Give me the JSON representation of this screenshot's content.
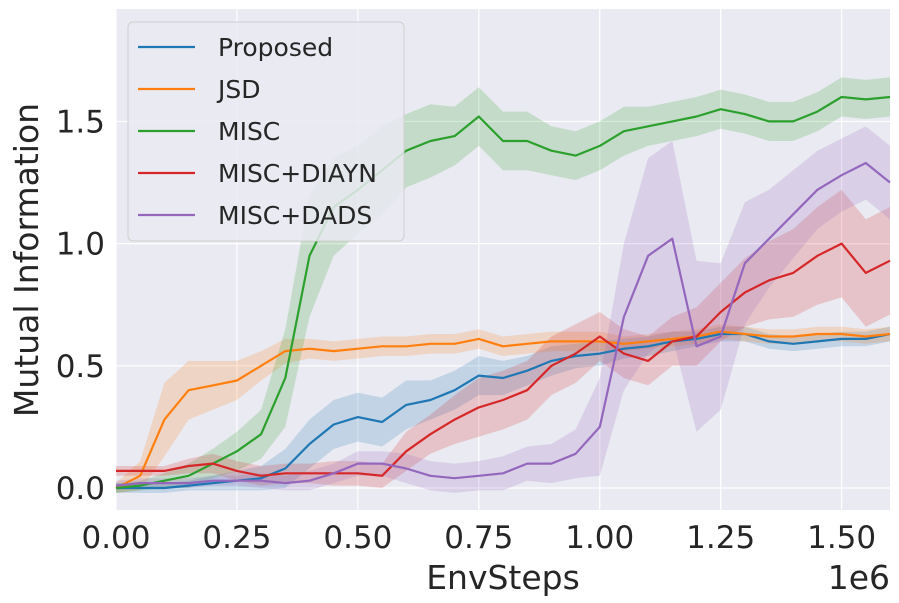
{
  "chart_data": {
    "type": "line",
    "title": "",
    "xlabel": "EnvSteps",
    "ylabel": "Mutual Information",
    "x_offset_label": "1e6",
    "xlim": [
      0,
      1.6
    ],
    "ylim": [
      -0.09,
      1.96
    ],
    "grid": true,
    "legend_position": "top-left",
    "x_ticks": [
      0,
      0.25,
      0.5,
      0.75,
      1.0,
      1.25,
      1.5
    ],
    "x_tick_labels": [
      "0.00",
      "0.25",
      "0.50",
      "0.75",
      "1.00",
      "1.25",
      "1.50"
    ],
    "y_ticks": [
      0,
      0.5,
      1.0,
      1.5
    ],
    "y_tick_labels": [
      "0.0",
      "0.5",
      "1.0",
      "1.5"
    ],
    "x": [
      0.0,
      0.05,
      0.1,
      0.15,
      0.2,
      0.25,
      0.3,
      0.35,
      0.4,
      0.45,
      0.5,
      0.55,
      0.6,
      0.65,
      0.7,
      0.75,
      0.8,
      0.85,
      0.9,
      0.95,
      1.0,
      1.05,
      1.1,
      1.15,
      1.2,
      1.25,
      1.3,
      1.35,
      1.4,
      1.45,
      1.5,
      1.55,
      1.6
    ],
    "series": [
      {
        "name": "Proposed",
        "color": "#1f77b4",
        "values": [
          0.0,
          0.0,
          0.0,
          0.01,
          0.02,
          0.03,
          0.04,
          0.08,
          0.18,
          0.26,
          0.29,
          0.27,
          0.34,
          0.36,
          0.4,
          0.46,
          0.45,
          0.48,
          0.52,
          0.54,
          0.55,
          0.57,
          0.58,
          0.6,
          0.61,
          0.63,
          0.63,
          0.6,
          0.59,
          0.6,
          0.61,
          0.61,
          0.63
        ],
        "band": [
          0.02,
          0.02,
          0.02,
          0.02,
          0.03,
          0.04,
          0.05,
          0.08,
          0.1,
          0.1,
          0.1,
          0.1,
          0.1,
          0.08,
          0.08,
          0.08,
          0.07,
          0.06,
          0.06,
          0.05,
          0.05,
          0.04,
          0.04,
          0.04,
          0.03,
          0.03,
          0.03,
          0.03,
          0.03,
          0.03,
          0.03,
          0.03,
          0.03
        ]
      },
      {
        "name": "JSD",
        "color": "#ff7f0e",
        "values": [
          0.0,
          0.05,
          0.28,
          0.4,
          0.42,
          0.44,
          0.5,
          0.56,
          0.57,
          0.56,
          0.57,
          0.58,
          0.58,
          0.59,
          0.59,
          0.61,
          0.58,
          0.59,
          0.6,
          0.6,
          0.6,
          0.59,
          0.6,
          0.61,
          0.62,
          0.64,
          0.63,
          0.62,
          0.62,
          0.63,
          0.63,
          0.62,
          0.63
        ],
        "band": [
          0.02,
          0.06,
          0.15,
          0.12,
          0.1,
          0.08,
          0.06,
          0.05,
          0.04,
          0.04,
          0.04,
          0.04,
          0.04,
          0.04,
          0.04,
          0.04,
          0.04,
          0.04,
          0.04,
          0.04,
          0.04,
          0.03,
          0.03,
          0.03,
          0.03,
          0.03,
          0.03,
          0.03,
          0.03,
          0.03,
          0.03,
          0.03,
          0.03
        ]
      },
      {
        "name": "MISC",
        "color": "#2ca02c",
        "values": [
          0.0,
          0.01,
          0.03,
          0.05,
          0.1,
          0.15,
          0.22,
          0.45,
          0.95,
          1.15,
          1.22,
          1.3,
          1.38,
          1.42,
          1.44,
          1.52,
          1.42,
          1.42,
          1.38,
          1.36,
          1.4,
          1.46,
          1.48,
          1.5,
          1.52,
          1.55,
          1.53,
          1.5,
          1.5,
          1.54,
          1.6,
          1.59,
          1.6
        ],
        "band": [
          0.02,
          0.02,
          0.03,
          0.05,
          0.06,
          0.08,
          0.1,
          0.2,
          0.25,
          0.2,
          0.18,
          0.18,
          0.15,
          0.15,
          0.12,
          0.12,
          0.12,
          0.12,
          0.1,
          0.1,
          0.1,
          0.1,
          0.08,
          0.08,
          0.08,
          0.08,
          0.08,
          0.08,
          0.08,
          0.08,
          0.08,
          0.08,
          0.08
        ]
      },
      {
        "name": "MISC+DIAYN",
        "color": "#d62728",
        "values": [
          0.07,
          0.07,
          0.07,
          0.09,
          0.1,
          0.07,
          0.05,
          0.06,
          0.06,
          0.06,
          0.06,
          0.05,
          0.15,
          0.22,
          0.28,
          0.33,
          0.36,
          0.4,
          0.5,
          0.55,
          0.62,
          0.55,
          0.52,
          0.6,
          0.62,
          0.72,
          0.8,
          0.85,
          0.88,
          0.95,
          1.0,
          0.88,
          0.93
        ],
        "band": [
          0.02,
          0.02,
          0.02,
          0.03,
          0.04,
          0.04,
          0.04,
          0.04,
          0.04,
          0.05,
          0.05,
          0.05,
          0.08,
          0.08,
          0.1,
          0.12,
          0.12,
          0.12,
          0.12,
          0.12,
          0.1,
          0.1,
          0.1,
          0.1,
          0.12,
          0.12,
          0.14,
          0.16,
          0.18,
          0.2,
          0.22,
          0.22,
          0.22
        ]
      },
      {
        "name": "MISC+DADS",
        "color": "#9467bd",
        "values": [
          0.01,
          0.02,
          0.02,
          0.02,
          0.03,
          0.03,
          0.03,
          0.02,
          0.03,
          0.06,
          0.1,
          0.1,
          0.08,
          0.05,
          0.04,
          0.05,
          0.06,
          0.1,
          0.1,
          0.14,
          0.25,
          0.7,
          0.95,
          1.02,
          0.58,
          0.62,
          0.92,
          1.02,
          1.12,
          1.22,
          1.28,
          1.33,
          1.25
        ],
        "band": [
          0.02,
          0.02,
          0.02,
          0.02,
          0.02,
          0.02,
          0.03,
          0.03,
          0.04,
          0.04,
          0.05,
          0.05,
          0.06,
          0.06,
          0.06,
          0.06,
          0.07,
          0.07,
          0.08,
          0.1,
          0.2,
          0.3,
          0.4,
          0.4,
          0.35,
          0.3,
          0.25,
          0.2,
          0.18,
          0.16,
          0.15,
          0.15,
          0.15
        ]
      }
    ]
  }
}
